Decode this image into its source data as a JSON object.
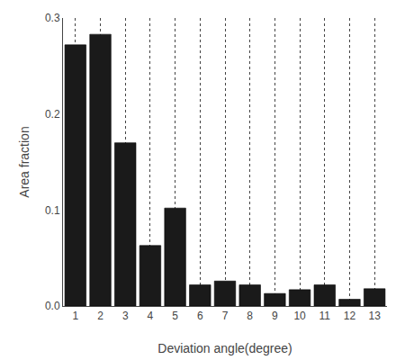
{
  "chart_data": {
    "type": "bar",
    "x": [
      1,
      2,
      3,
      4,
      5,
      6,
      7,
      8,
      9,
      10,
      11,
      12,
      13
    ],
    "values": [
      0.272,
      0.283,
      0.17,
      0.063,
      0.102,
      0.022,
      0.026,
      0.022,
      0.013,
      0.017,
      0.022,
      0.007,
      0.018
    ],
    "color": "#1a1a1a",
    "xlabel": "Deviation angle(degree)",
    "ylabel": "Area fraction",
    "xlim": [
      0.5,
      13.5
    ],
    "xticks": [
      1,
      2,
      3,
      4,
      5,
      6,
      7,
      8,
      9,
      10,
      11,
      12,
      13
    ],
    "ylim": [
      0.0,
      0.3
    ],
    "yticks": [
      {
        "value": 0.0,
        "label": "0.0"
      },
      0.1,
      0.2,
      0.3
    ],
    "grid": "x"
  }
}
